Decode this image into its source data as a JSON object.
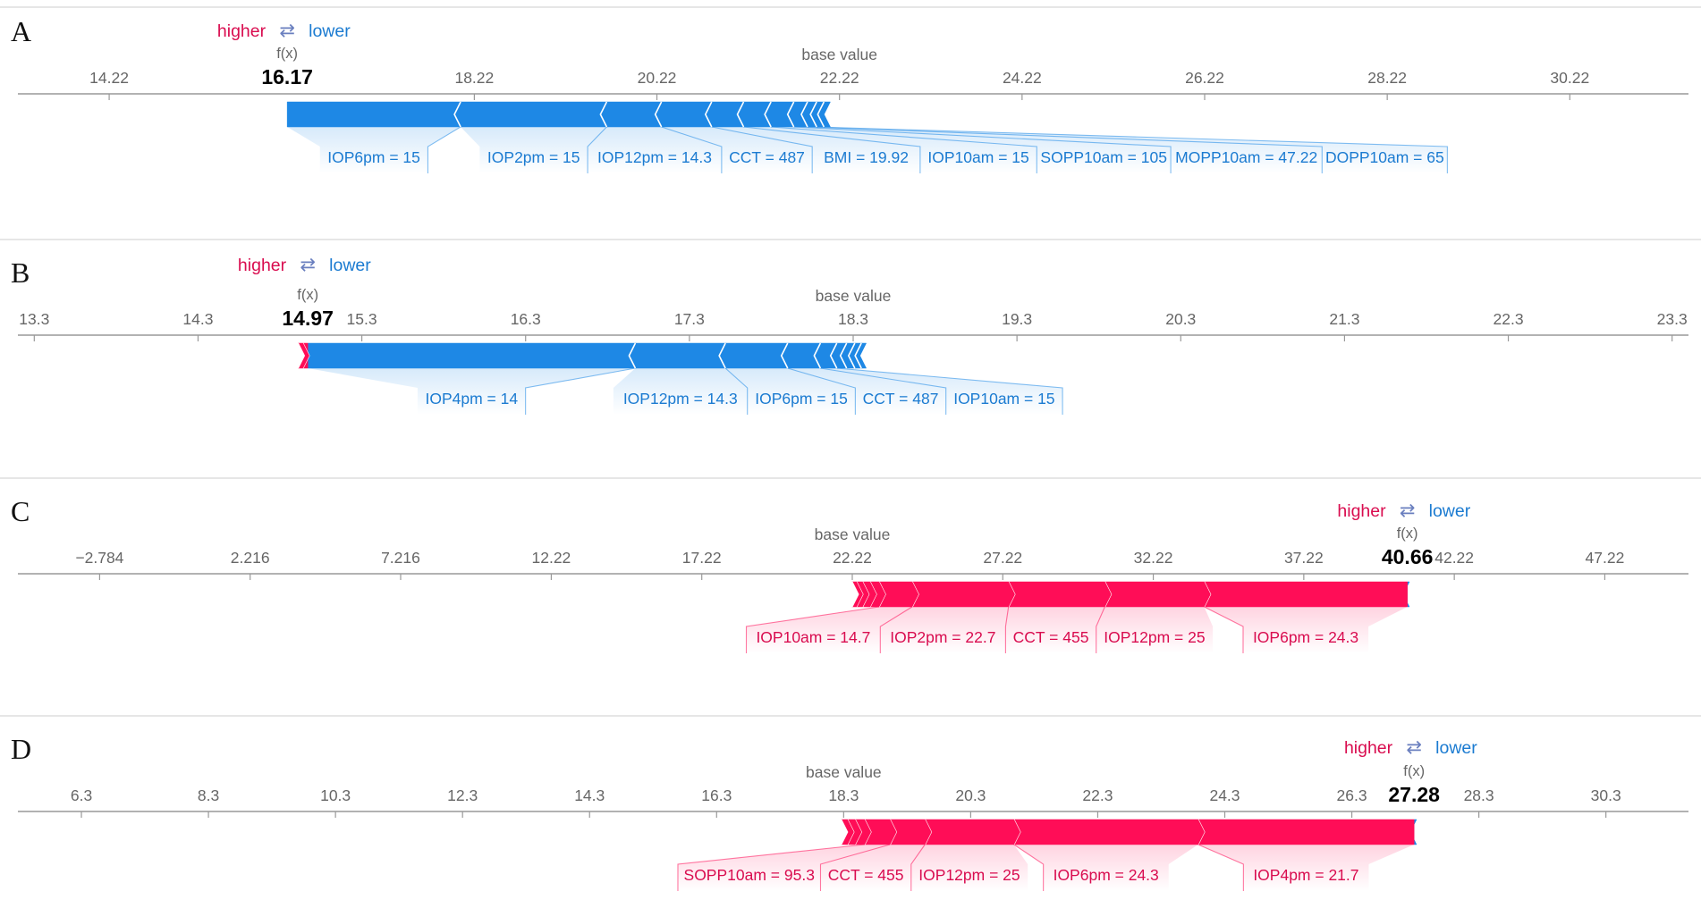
{
  "figure": {
    "type": "shap-force-plot-panels"
  },
  "colors": {
    "positive": "#ff0d57",
    "negative": "#1e88e5",
    "positive_label": "#d90c4f",
    "negative_label": "#1b7bd1",
    "axis": "#999999",
    "tick_text": "#666666",
    "separator": "#dddddd"
  },
  "chart_data": [
    {
      "type": "force",
      "panel_label": "A",
      "higher_label": "higher",
      "lower_label": "lower",
      "arrows_glyph": "⇄",
      "fx_label": "f(x)",
      "fx_value_text": "16.17",
      "fx_value": 16.17,
      "base_label": "base value",
      "base_value": 22.22,
      "xlim": [
        13.22,
        31.52
      ],
      "ticks": [
        14.22,
        18.22,
        20.22,
        22.22,
        24.22,
        26.22,
        28.22,
        30.22
      ],
      "tick_labels": [
        "14.22",
        "18.22",
        "20.22",
        "22.22",
        "24.22",
        "26.22",
        "28.22",
        "30.22"
      ],
      "positive_features": [],
      "negative_features": [
        {
          "label": "IOP6pm = 15",
          "value": 1.9
        },
        {
          "label": "IOP2pm = 15",
          "value": 1.6
        },
        {
          "label": "IOP12pm = 14.3",
          "value": 0.6
        },
        {
          "label": "CCT = 487",
          "value": 0.55
        },
        {
          "label": "BMI = 19.92",
          "value": 0.35
        },
        {
          "label": "IOP10am = 15",
          "value": 0.3
        },
        {
          "label": "SOPP10am = 105",
          "value": 0.25
        },
        {
          "label": "MOPP10am = 47.22",
          "value": 0.15
        },
        {
          "label": "DOPP10am = 65",
          "value": 0.1
        },
        {
          "label": "",
          "value": 0.08
        },
        {
          "label": "",
          "value": 0.07
        }
      ]
    },
    {
      "type": "force",
      "panel_label": "B",
      "higher_label": "higher",
      "lower_label": "lower",
      "arrows_glyph": "⇄",
      "fx_label": "f(x)",
      "fx_value_text": "14.97",
      "fx_value": 14.97,
      "base_label": "base value",
      "base_value": 18.3,
      "xlim": [
        13.2,
        23.4
      ],
      "ticks": [
        13.3,
        14.3,
        15.3,
        16.3,
        17.3,
        18.3,
        19.3,
        20.3,
        21.3,
        22.3,
        23.3
      ],
      "tick_labels": [
        "13.3",
        "14.3",
        "15.3",
        "16.3",
        "17.3",
        "18.3",
        "19.3",
        "20.3",
        "21.3",
        "22.3",
        "23.3"
      ],
      "positive_features": [
        {
          "label": "",
          "value": 0.03
        },
        {
          "label": "",
          "value": 0.03
        }
      ],
      "negative_features": [
        {
          "label": "IOP4pm = 14",
          "value": 2.0
        },
        {
          "label": "IOP12pm = 14.3",
          "value": 0.55
        },
        {
          "label": "IOP6pm = 15",
          "value": 0.38
        },
        {
          "label": "CCT = 487",
          "value": 0.2
        },
        {
          "label": "IOP10am = 15",
          "value": 0.1
        },
        {
          "label": "",
          "value": 0.06
        },
        {
          "label": "",
          "value": 0.05
        },
        {
          "label": "",
          "value": 0.04
        },
        {
          "label": "",
          "value": 0.03
        }
      ]
    },
    {
      "type": "force",
      "panel_label": "C",
      "higher_label": "higher",
      "lower_label": "lower",
      "arrows_glyph": "⇄",
      "fx_label": "f(x)",
      "fx_value_text": "40.66",
      "fx_value": 40.66,
      "base_label": "base value",
      "base_value": 22.22,
      "xlim": [
        -5.5,
        50.0
      ],
      "ticks": [
        -2.784,
        2.216,
        7.216,
        12.22,
        17.22,
        22.22,
        27.22,
        32.22,
        37.22,
        42.22,
        47.22
      ],
      "tick_labels": [
        "−2.784",
        "2.216",
        "7.216",
        "12.22",
        "17.22",
        "22.22",
        "27.22",
        "32.22",
        "37.22",
        "42.22",
        "47.22"
      ],
      "positive_features": [
        {
          "label": "IOP6pm = 24.3",
          "value": 6.75
        },
        {
          "label": "IOP12pm = 25",
          "value": 3.3
        },
        {
          "label": "CCT = 455",
          "value": 3.2
        },
        {
          "label": "IOP2pm = 22.7",
          "value": 3.2
        },
        {
          "label": "IOP10am = 14.7",
          "value": 1.1
        },
        {
          "label": "",
          "value": 0.3
        },
        {
          "label": "",
          "value": 0.25
        },
        {
          "label": "",
          "value": 0.2
        },
        {
          "label": "",
          "value": 0.15
        }
      ],
      "negative_features": [
        {
          "label": "",
          "value": 0.07
        }
      ]
    },
    {
      "type": "force",
      "panel_label": "D",
      "higher_label": "higher",
      "lower_label": "lower",
      "arrows_glyph": "⇄",
      "fx_label": "f(x)",
      "fx_value_text": "27.28",
      "fx_value": 27.28,
      "base_label": "base value",
      "base_value": 18.3,
      "xlim": [
        5.3,
        31.6
      ],
      "ticks": [
        6.3,
        8.3,
        10.3,
        12.3,
        14.3,
        16.3,
        18.3,
        20.3,
        22.3,
        24.3,
        26.3,
        28.3,
        30.3
      ],
      "tick_labels": [
        "6.3",
        "8.3",
        "10.3",
        "12.3",
        "14.3",
        "16.3",
        "18.3",
        "20.3",
        "22.3",
        "24.3",
        "26.3",
        "28.3",
        "30.3"
      ],
      "positive_features": [
        {
          "label": "IOP4pm = 21.7",
          "value": 3.4
        },
        {
          "label": "IOP6pm = 24.3",
          "value": 2.9
        },
        {
          "label": "IOP12pm = 25",
          "value": 1.4
        },
        {
          "label": "CCT = 455",
          "value": 0.55
        },
        {
          "label": "SOPP10am = 95.3",
          "value": 0.4
        },
        {
          "label": "",
          "value": 0.15
        },
        {
          "label": "",
          "value": 0.12
        },
        {
          "label": "",
          "value": 0.1
        }
      ],
      "negative_features": [
        {
          "label": "",
          "value": 0.04
        }
      ]
    }
  ]
}
